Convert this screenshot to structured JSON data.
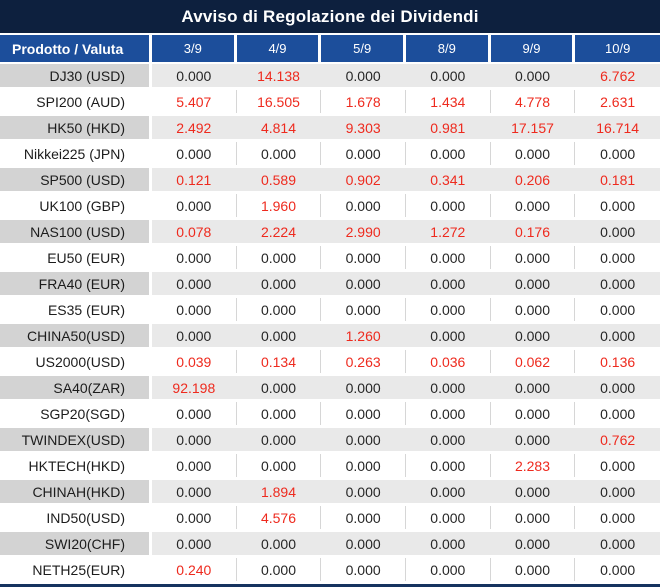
{
  "title": "Avviso di Regolazione dei Dividendi",
  "colors": {
    "title_bar": "#0D203E",
    "header_row": "#1C4E9B",
    "striped_label_bg": "#D3D3D3",
    "striped_data_bg": "#E9E9E9",
    "positive_value_red": "#EE2A1E",
    "zero_value_text": "#262626",
    "bottom_border": "#16335F"
  },
  "table": {
    "header": [
      "Prodotto / Valuta",
      "3/9",
      "4/9",
      "5/9",
      "8/9",
      "9/9",
      "10/9"
    ],
    "rows": [
      {
        "product": "DJ30 (USD)",
        "values": [
          "0.000",
          "14.138",
          "0.000",
          "0.000",
          "0.000",
          "6.762"
        ]
      },
      {
        "product": "SPI200 (AUD)",
        "values": [
          "5.407",
          "16.505",
          "1.678",
          "1.434",
          "4.778",
          "2.631"
        ]
      },
      {
        "product": "HK50 (HKD)",
        "values": [
          "2.492",
          "4.814",
          "9.303",
          "0.981",
          "17.157",
          "16.714"
        ]
      },
      {
        "product": "Nikkei225 (JPN)",
        "values": [
          "0.000",
          "0.000",
          "0.000",
          "0.000",
          "0.000",
          "0.000"
        ]
      },
      {
        "product": "SP500 (USD)",
        "values": [
          "0.121",
          "0.589",
          "0.902",
          "0.341",
          "0.206",
          "0.181"
        ]
      },
      {
        "product": "UK100 (GBP)",
        "values": [
          "0.000",
          "1.960",
          "0.000",
          "0.000",
          "0.000",
          "0.000"
        ]
      },
      {
        "product": "NAS100 (USD)",
        "values": [
          "0.078",
          "2.224",
          "2.990",
          "1.272",
          "0.176",
          "0.000"
        ]
      },
      {
        "product": "EU50 (EUR)",
        "values": [
          "0.000",
          "0.000",
          "0.000",
          "0.000",
          "0.000",
          "0.000"
        ]
      },
      {
        "product": "FRA40 (EUR)",
        "values": [
          "0.000",
          "0.000",
          "0.000",
          "0.000",
          "0.000",
          "0.000"
        ]
      },
      {
        "product": "ES35 (EUR)",
        "values": [
          "0.000",
          "0.000",
          "0.000",
          "0.000",
          "0.000",
          "0.000"
        ]
      },
      {
        "product": "CHINA50(USD)",
        "values": [
          "0.000",
          "0.000",
          "1.260",
          "0.000",
          "0.000",
          "0.000"
        ]
      },
      {
        "product": "US2000(USD)",
        "values": [
          "0.039",
          "0.134",
          "0.263",
          "0.036",
          "0.062",
          "0.136"
        ]
      },
      {
        "product": "SA40(ZAR)",
        "values": [
          "92.198",
          "0.000",
          "0.000",
          "0.000",
          "0.000",
          "0.000"
        ]
      },
      {
        "product": "SGP20(SGD)",
        "values": [
          "0.000",
          "0.000",
          "0.000",
          "0.000",
          "0.000",
          "0.000"
        ]
      },
      {
        "product": "TWINDEX(USD)",
        "values": [
          "0.000",
          "0.000",
          "0.000",
          "0.000",
          "0.000",
          "0.762"
        ]
      },
      {
        "product": "HKTECH(HKD)",
        "values": [
          "0.000",
          "0.000",
          "0.000",
          "0.000",
          "2.283",
          "0.000"
        ]
      },
      {
        "product": "CHINAH(HKD)",
        "values": [
          "0.000",
          "1.894",
          "0.000",
          "0.000",
          "0.000",
          "0.000"
        ]
      },
      {
        "product": "IND50(USD)",
        "values": [
          "0.000",
          "4.576",
          "0.000",
          "0.000",
          "0.000",
          "0.000"
        ]
      },
      {
        "product": "SWI20(CHF)",
        "values": [
          "0.000",
          "0.000",
          "0.000",
          "0.000",
          "0.000",
          "0.000"
        ]
      },
      {
        "product": "NETH25(EUR)",
        "values": [
          "0.240",
          "0.000",
          "0.000",
          "0.000",
          "0.000",
          "0.000"
        ]
      }
    ]
  }
}
